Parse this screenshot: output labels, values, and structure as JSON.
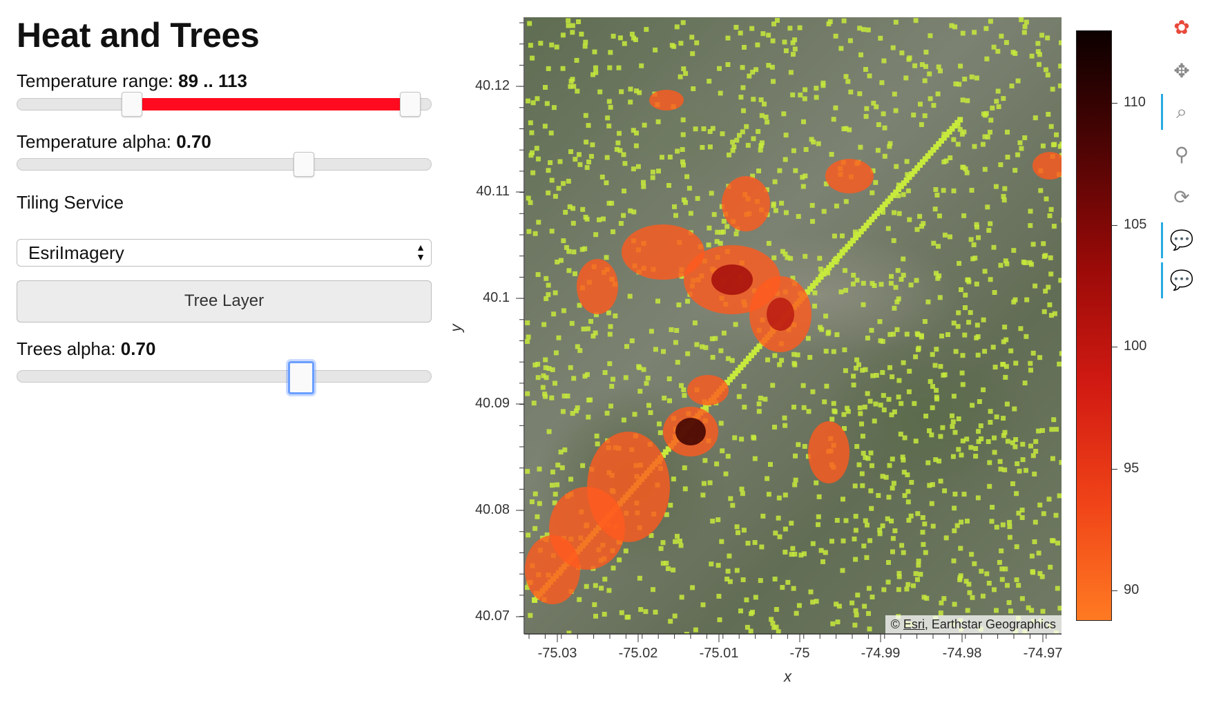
{
  "panel": {
    "title": "Heat and Trees",
    "temperature_range": {
      "label": "Temperature range:",
      "value_text": "89 .. 113",
      "start": 89,
      "end": 113,
      "min": 80,
      "max": 114
    },
    "temperature_alpha": {
      "label": "Temperature alpha:",
      "value_text": "0.70",
      "value": 0.7,
      "min": 0,
      "max": 1
    },
    "tiling_service": {
      "label": "Tiling Service",
      "selected": "EsriImagery"
    },
    "tree_button": {
      "label": "Tree Layer"
    },
    "trees_alpha": {
      "label": "Trees alpha:",
      "value_text": "0.70",
      "value": 0.7,
      "min": 0,
      "max": 1
    }
  },
  "plot": {
    "xlabel": "x",
    "ylabel": "y",
    "x_ticks": [
      "-75.03",
      "-75.02",
      "-75.01",
      "-75",
      "-74.99",
      "-74.98",
      "-74.97"
    ],
    "y_ticks": [
      "40.12",
      "40.11",
      "40.1",
      "40.09",
      "40.08",
      "40.07"
    ],
    "attribution": {
      "prefix": "© ",
      "link": "Esri",
      "rest": ", Earthstar Geographics"
    }
  },
  "colorbar": {
    "ticks": [
      "110",
      "105",
      "100",
      "95",
      "90"
    ],
    "colors": [
      "#ff7a22",
      "#d11a12",
      "#0c0000"
    ]
  },
  "toolbar": {
    "tools": [
      {
        "name": "bokeh-logo-icon",
        "glyph": "✿"
      },
      {
        "name": "pan-icon",
        "glyph": "✥"
      },
      {
        "name": "box-zoom-icon",
        "glyph": "⌕"
      },
      {
        "name": "wheel-zoom-icon",
        "glyph": "⚲"
      },
      {
        "name": "reset-icon",
        "glyph": "⟳"
      },
      {
        "name": "hover-icon",
        "glyph": "💬"
      },
      {
        "name": "hover-icon-2",
        "glyph": "💬"
      }
    ]
  },
  "colors": {
    "slider_fill": "#ff0a1e",
    "trees": "#c7ea3c",
    "heat": "#ff5a1e"
  }
}
